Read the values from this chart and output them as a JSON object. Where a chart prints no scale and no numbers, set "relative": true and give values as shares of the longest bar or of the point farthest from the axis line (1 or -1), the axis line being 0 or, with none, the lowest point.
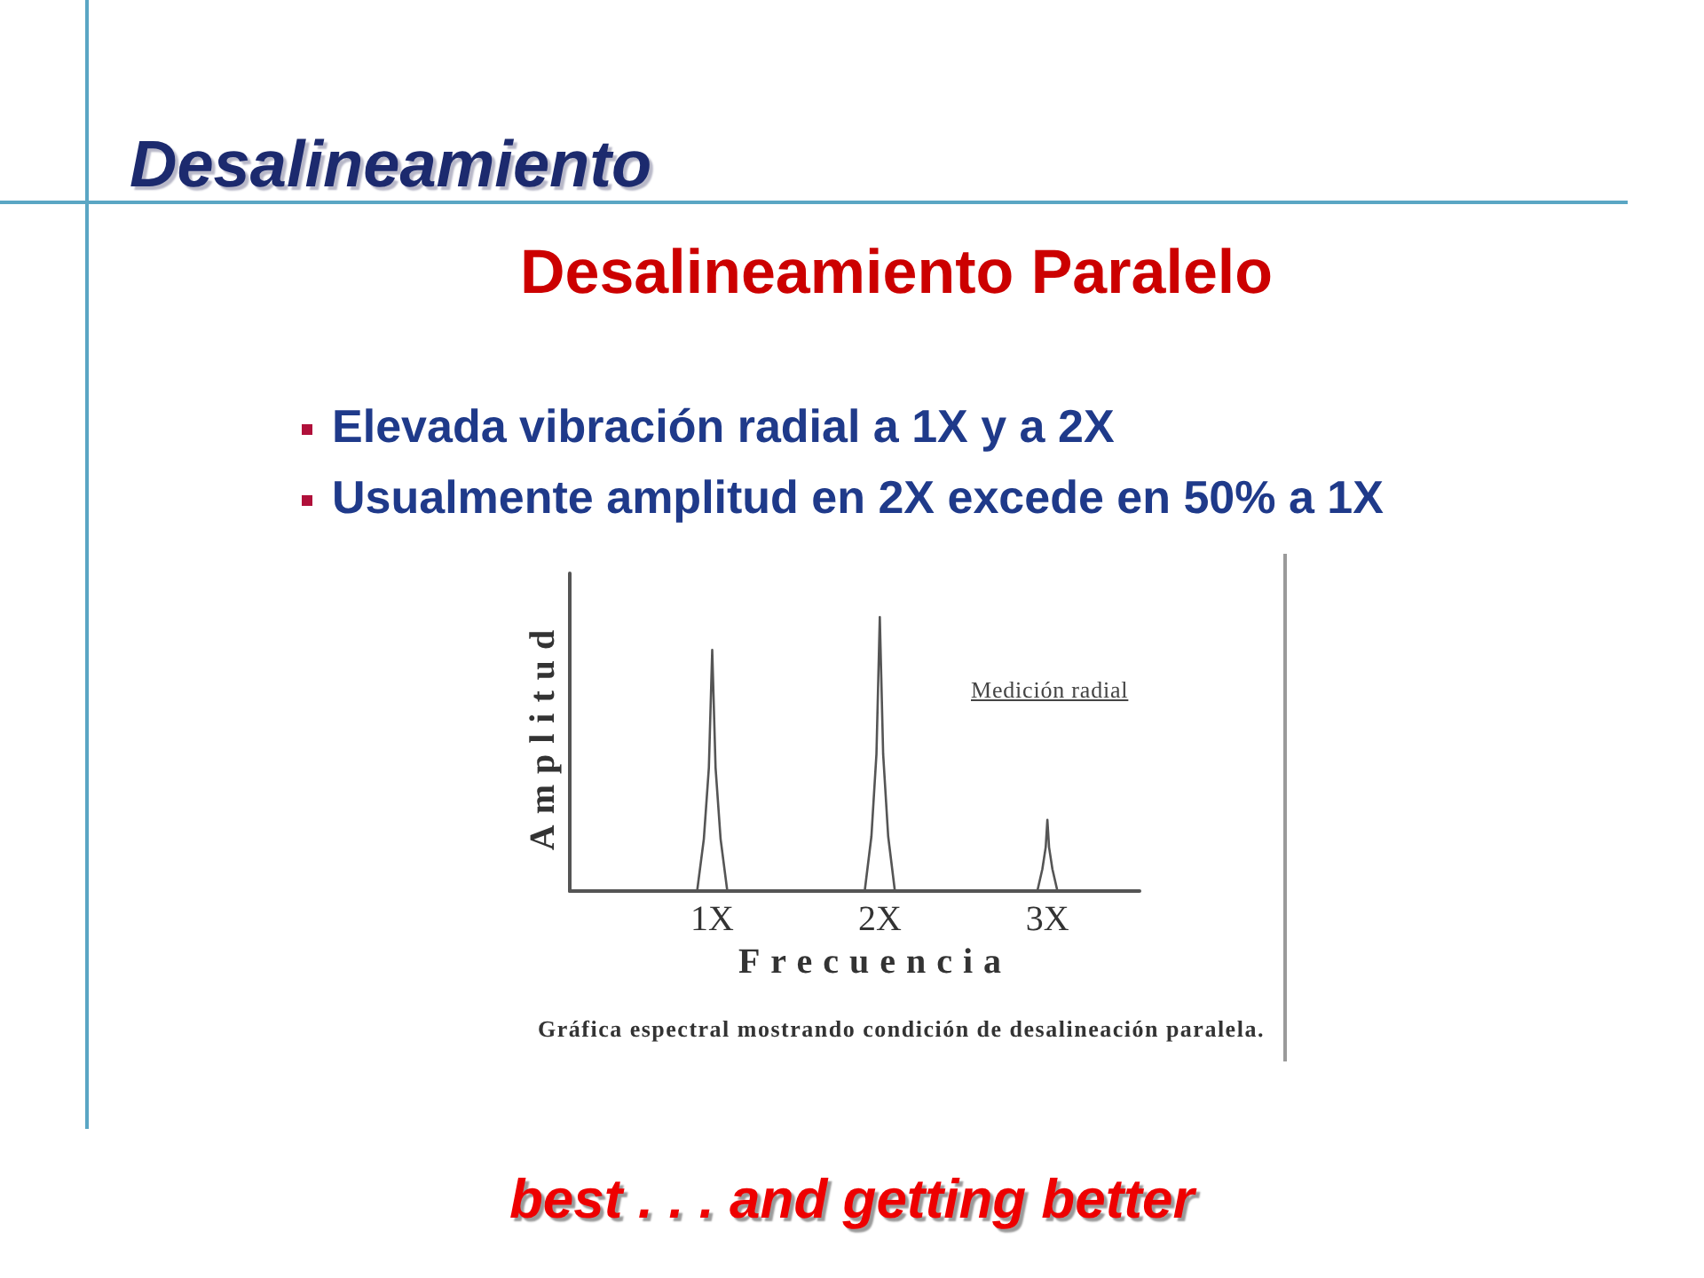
{
  "chart_data": {
    "type": "line",
    "title": "Desalineamiento",
    "subtitle": "Desalineamiento Paralelo",
    "xlabel": "Frecuencia",
    "ylabel": "Amplitud",
    "relative": true,
    "x": [
      0.15,
      0.91,
      0.95,
      0.98,
      1,
      1.02,
      1.05,
      1.09,
      1.91,
      1.95,
      1.98,
      2,
      2.02,
      2.05,
      2.09,
      2.94,
      2.97,
      2.99,
      3,
      3.01,
      3.03,
      3.06,
      3.55
    ],
    "series": [
      {
        "color": "#555555",
        "values": [
          0,
          0,
          0.19,
          0.45,
          0.88,
          0.45,
          0.19,
          0,
          0,
          0.2,
          0.5,
          1,
          0.5,
          0.2,
          0,
          0,
          0.08,
          0.16,
          0.26,
          0.16,
          0.08,
          0,
          0
        ]
      }
    ],
    "xlim": [
      0.15,
      3.55
    ],
    "xticks": [
      {
        "value": 1,
        "label": "1X"
      },
      {
        "value": 2,
        "label": "2X"
      },
      {
        "value": 3,
        "label": "3X"
      }
    ],
    "marker": "none",
    "line_style": "solid",
    "grid": false,
    "annotations": [
      "Elevada vibración radial a 1X y a 2X",
      "Usualmente amplitud en 2X excede en 50% a 1X",
      "Medición radial",
      "Gráfica espectral mostrando condición de desalineación paralela.",
      "best . . . and getting better"
    ]
  }
}
